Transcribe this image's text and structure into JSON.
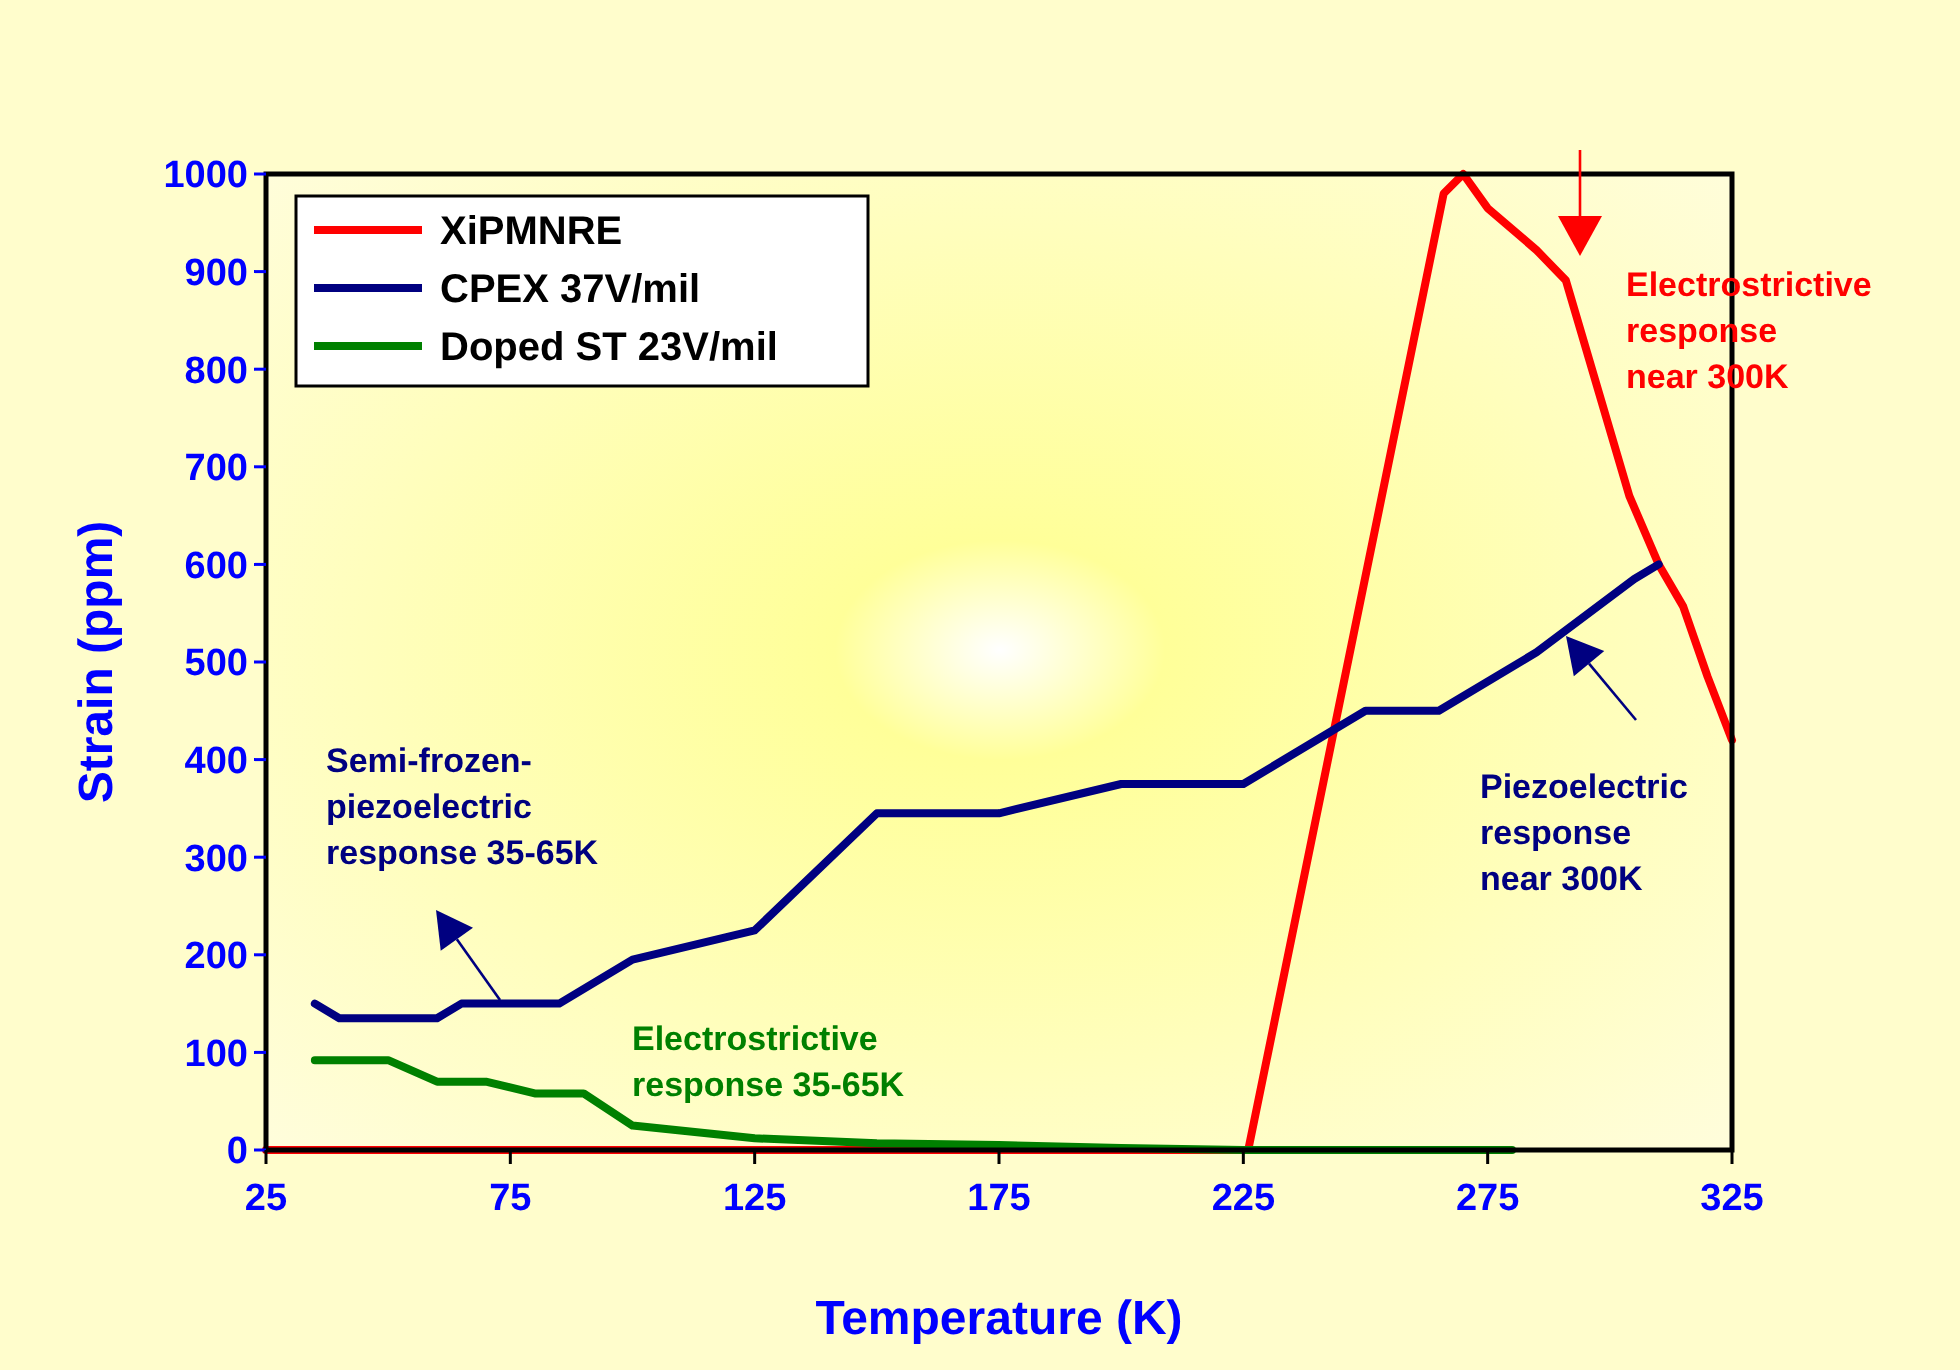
{
  "chart_data": {
    "type": "line",
    "xlabel": "Temperature (K)",
    "ylabel": "Strain (ppm)",
    "xlim": [
      25,
      325
    ],
    "xticks": [
      25,
      75,
      125,
      175,
      225,
      275,
      325
    ],
    "ylim": [
      0,
      1000
    ],
    "yticks": [
      0,
      100,
      200,
      300,
      400,
      500,
      600,
      700,
      800,
      900,
      1000
    ],
    "grid": false,
    "legend": "top left",
    "marker": "none",
    "line_style": "solid",
    "series": [
      {
        "name": "XiPMNRE",
        "color": "#ff0000",
        "x": [
          25,
          226,
          266,
          270,
          275,
          285,
          291,
          304,
          310,
          315,
          320,
          325
        ],
        "values": [
          0,
          0,
          980,
          1000,
          965,
          922,
          891,
          670,
          600,
          557,
          485,
          420
        ]
      },
      {
        "name": "CPEX 37V/mil",
        "color": "#000080",
        "x": [
          35,
          40,
          60,
          65,
          85,
          100,
          125,
          150,
          175,
          200,
          225,
          250,
          265,
          285,
          305,
          310
        ],
        "values": [
          150,
          135,
          135,
          150,
          150,
          195,
          225,
          345,
          345,
          375,
          375,
          450,
          450,
          510,
          585,
          600
        ]
      },
      {
        "name": "Doped ST 23V/mil",
        "color": "#008000",
        "x": [
          35,
          50,
          60,
          70,
          80,
          90,
          100,
          125,
          150,
          175,
          200,
          225,
          280
        ],
        "values": [
          92,
          92,
          70,
          70,
          58,
          58,
          25,
          12,
          7,
          5,
          2,
          0,
          0
        ]
      }
    ],
    "annotations": [
      "Electrostrictive\nresponse\nnear 300K",
      "Semi-frozen-\npiezoelectric\nresponse 35-65K",
      "Piezoelectric\nresponse\nnear 300K",
      "Electrostrictive\nresponse 35-65K"
    ]
  }
}
